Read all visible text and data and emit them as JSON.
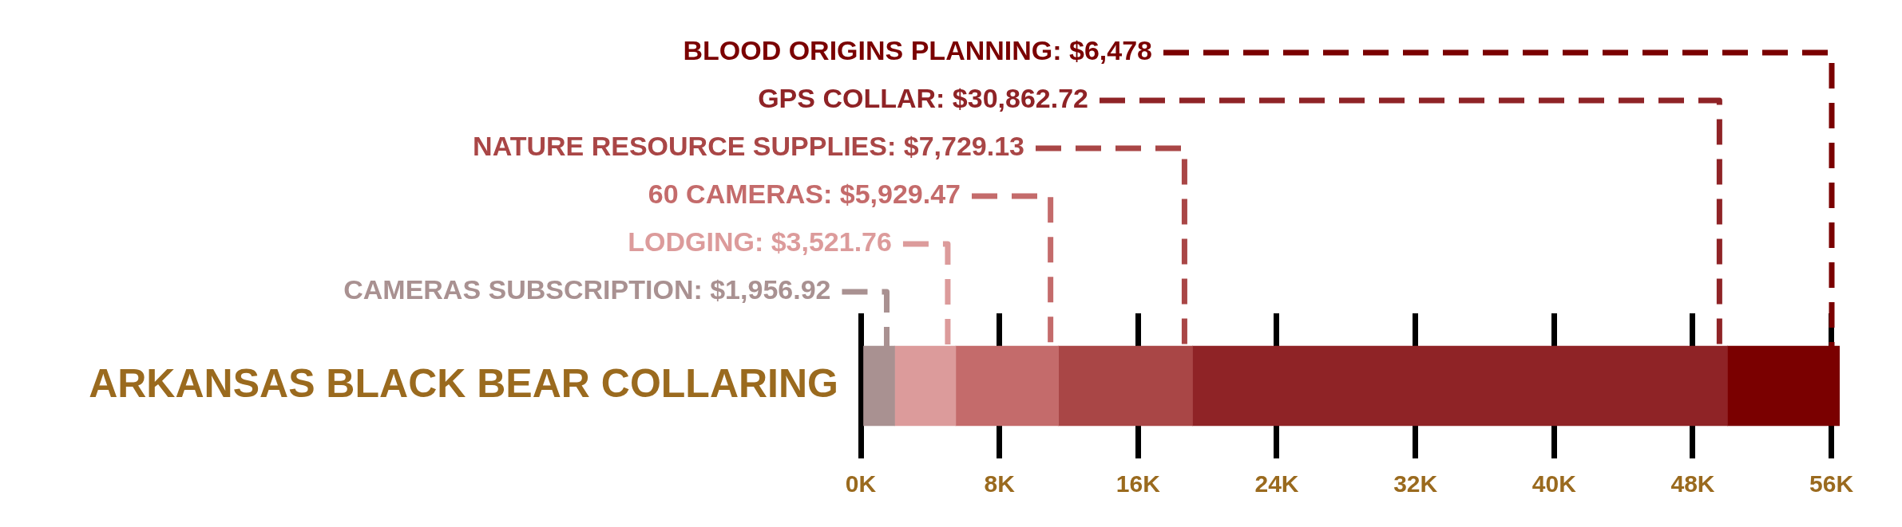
{
  "chart_data": {
    "type": "bar",
    "orientation": "horizontal",
    "stacked": true,
    "categories": [
      "ARKANSAS BLACK BEAR COLLARING"
    ],
    "series": [
      {
        "name": "CAMERAS SUBSCRIPTION:",
        "color": "#a99191",
        "values": [
          1956.92
        ],
        "value_labels": [
          "$1,956.92"
        ]
      },
      {
        "name": "LODGING:",
        "color": "#dc9b9b",
        "values": [
          3521.76
        ],
        "value_labels": [
          "$3,521.76"
        ]
      },
      {
        "name": "60 CAMERAS:",
        "color": "#c46b6b",
        "values": [
          5929.47
        ],
        "value_labels": [
          "$5,929.47"
        ]
      },
      {
        "name": "NATURE RESOURCE SUPPLIES:",
        "color": "#a94646",
        "values": [
          7729.13
        ],
        "value_labels": [
          "$7,729.13"
        ]
      },
      {
        "name": "GPS COLLAR:",
        "color": "#8f2326",
        "values": [
          30862.72
        ],
        "value_labels": [
          "$30,862.72"
        ]
      },
      {
        "name": "BLOOD ORIGINS PLANNING:",
        "color": "#7a0000",
        "values": [
          6478
        ],
        "value_labels": [
          "$6,478"
        ]
      }
    ],
    "xlim": [
      0,
      56478
    ],
    "grid": "x",
    "xticks": [
      {
        "value": 0,
        "label": "0K"
      },
      {
        "value": 8000,
        "label": "8K"
      },
      {
        "value": 16000,
        "label": "16K"
      },
      {
        "value": 24000,
        "label": "24K"
      },
      {
        "value": 32000,
        "label": "32K"
      },
      {
        "value": 40000,
        "label": "40K"
      },
      {
        "value": 48000,
        "label": "48K"
      },
      {
        "value": 56000,
        "label": "56K"
      }
    ]
  }
}
